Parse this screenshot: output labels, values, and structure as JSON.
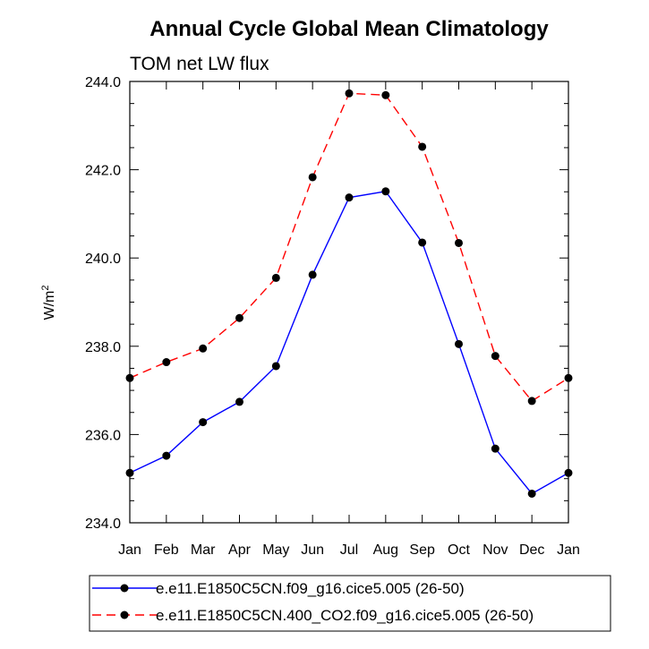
{
  "chart_data": {
    "type": "line",
    "title": "Annual Cycle Global Mean Climatology",
    "subtitle": "TOM net LW flux",
    "ylabel": "W/m",
    "ylabel_sup": "2",
    "xlabel": "",
    "categories": [
      "Jan",
      "Feb",
      "Mar",
      "Apr",
      "May",
      "Jun",
      "Jul",
      "Aug",
      "Sep",
      "Oct",
      "Nov",
      "Dec",
      "Jan"
    ],
    "ylim": [
      234.0,
      244.0
    ],
    "yticks": [
      "234.0",
      "236.0",
      "238.0",
      "240.0",
      "242.0",
      "244.0"
    ],
    "grid": false,
    "legend_position": "bottom",
    "series": [
      {
        "name": "e.e11.E1850C5CN.f09_g16.cice5.005 (26-50)",
        "color": "#0000ff",
        "dash": "solid",
        "values": [
          235.13,
          235.52,
          236.28,
          236.74,
          237.55,
          239.62,
          241.37,
          241.51,
          240.35,
          238.05,
          235.68,
          234.66,
          235.13
        ]
      },
      {
        "name": "e.e11.E1850C5CN.400_CO2.f09_g16.cice5.005 (26-50)",
        "color": "#ff0000",
        "dash": "dashed",
        "values": [
          237.28,
          237.64,
          237.95,
          238.64,
          239.55,
          241.83,
          243.73,
          243.69,
          242.52,
          240.34,
          237.78,
          236.76,
          237.28
        ]
      }
    ]
  }
}
